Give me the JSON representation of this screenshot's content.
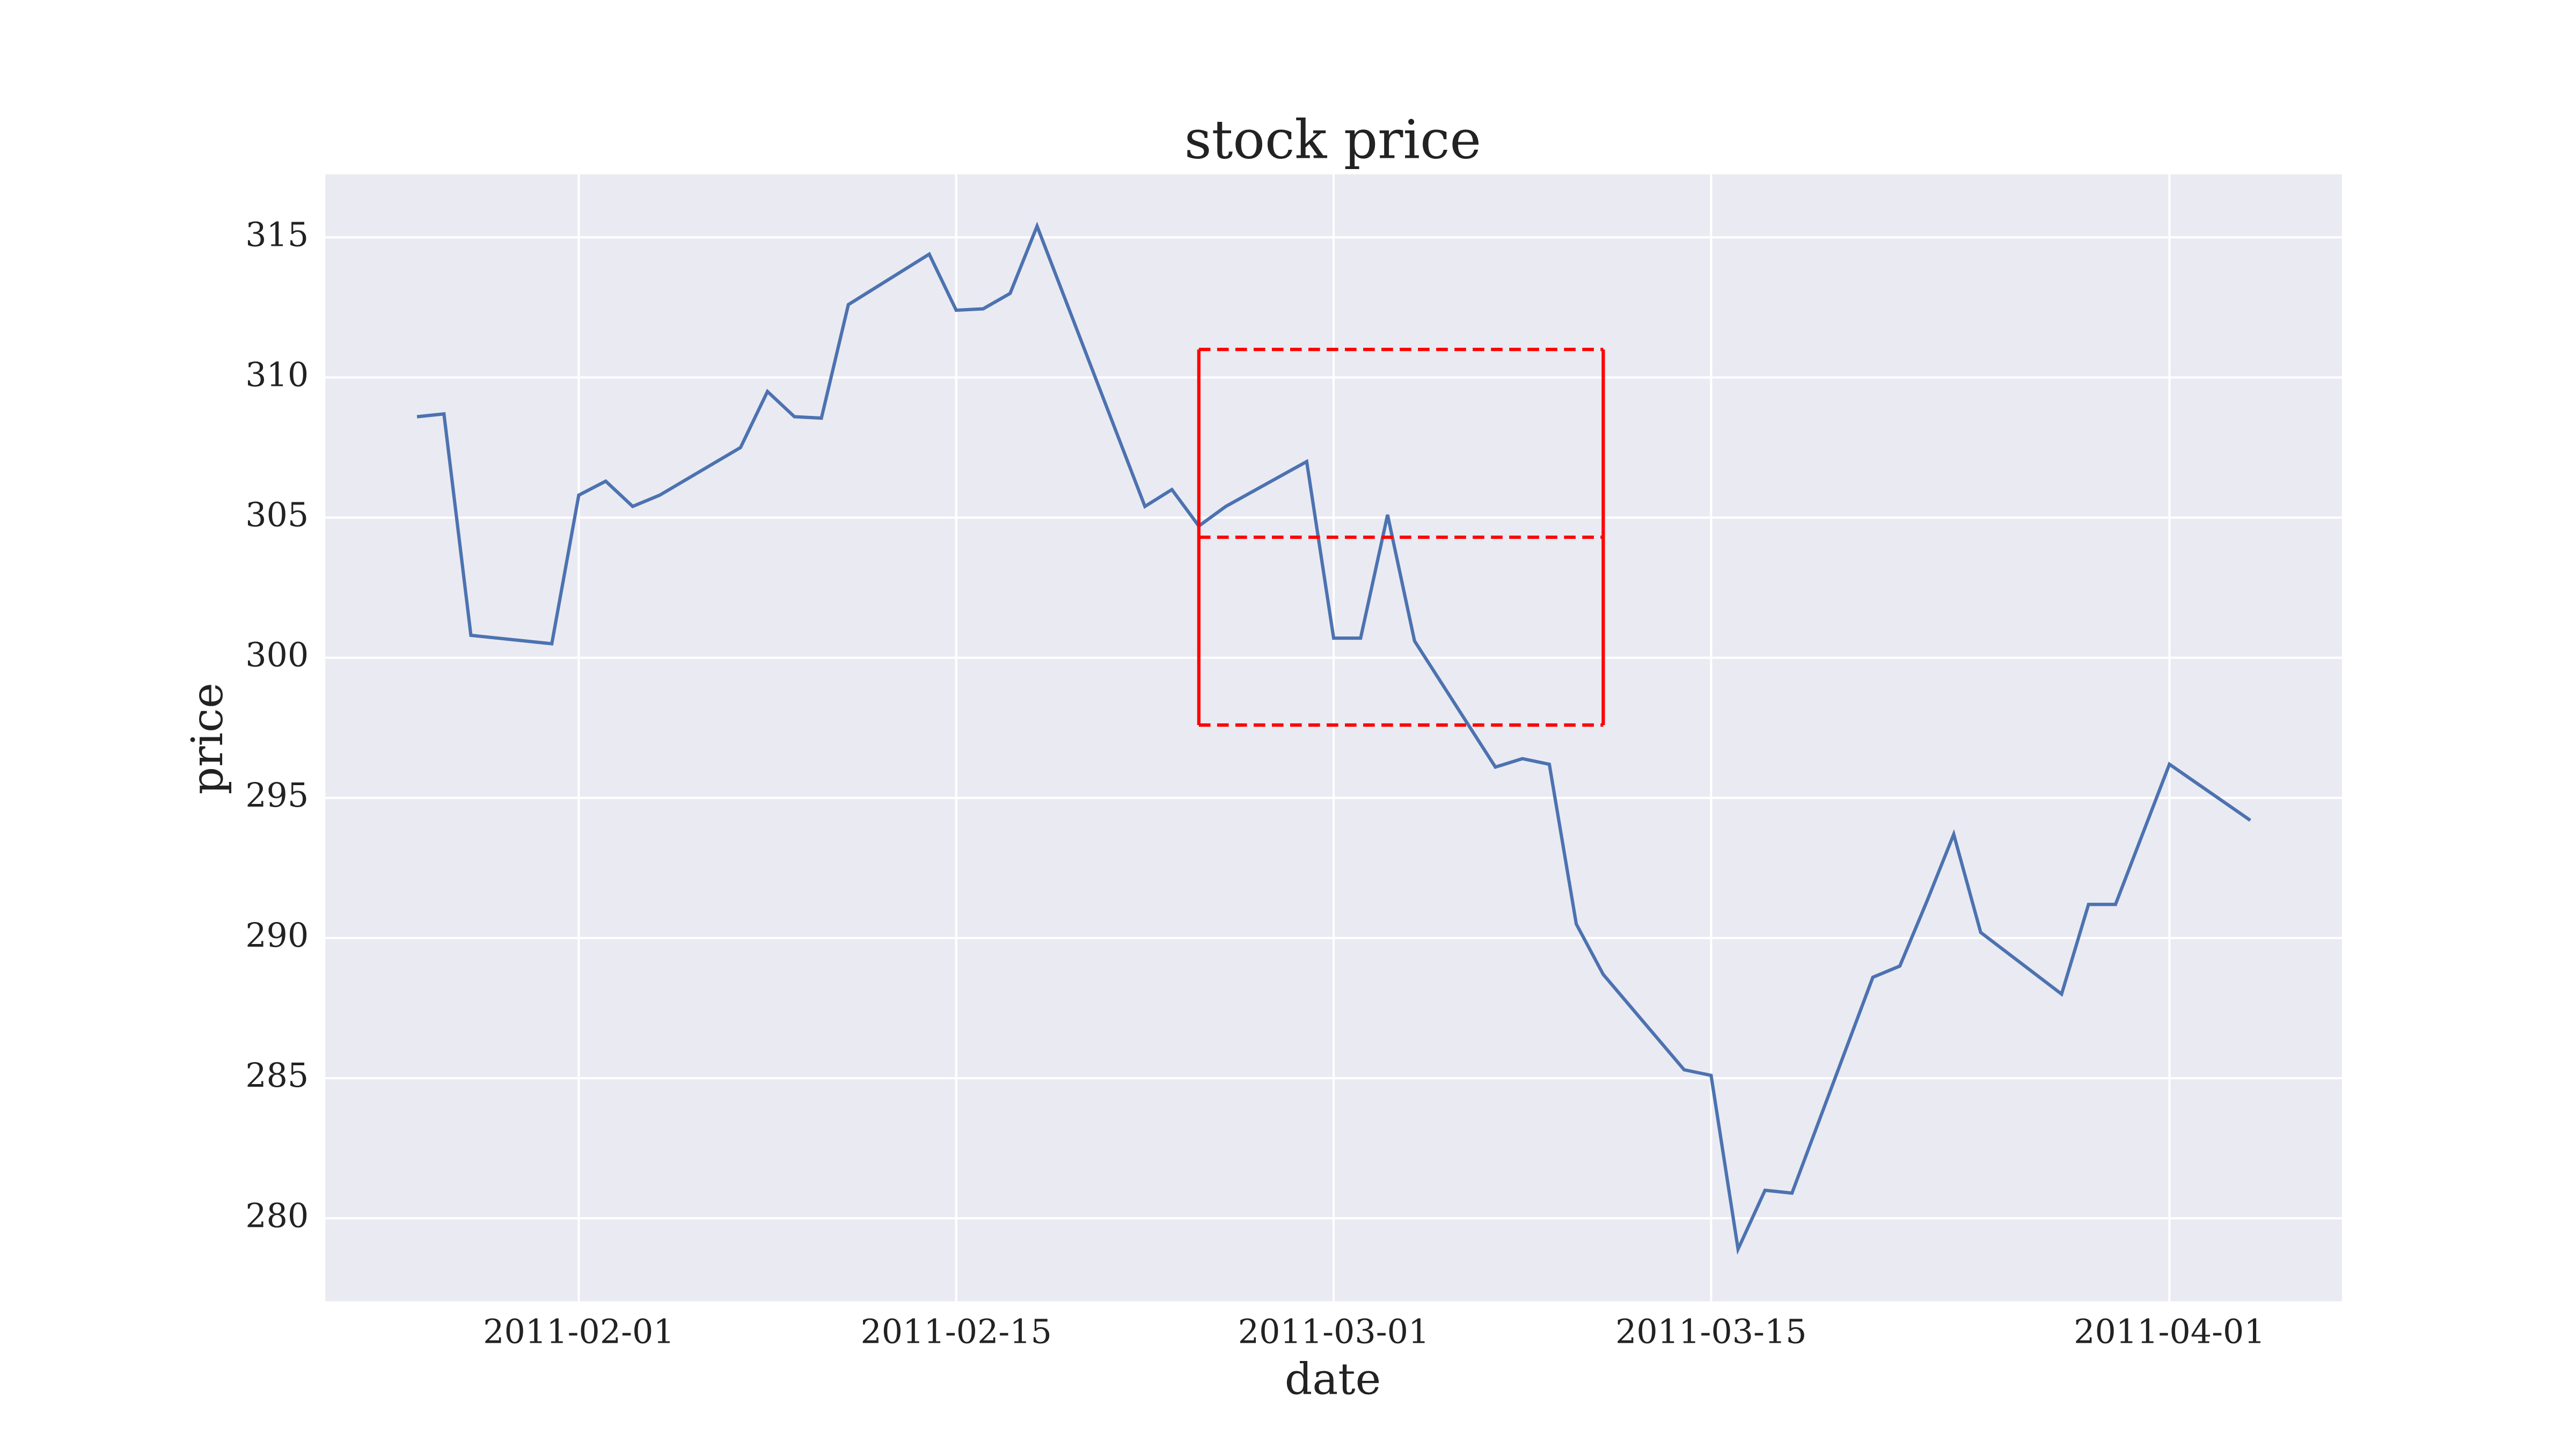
{
  "chart_data": {
    "type": "line",
    "title": "stock price",
    "x_label": "date",
    "y_label": "price",
    "x": [
      "2011-01-26",
      "2011-01-27",
      "2011-01-28",
      "2011-01-31",
      "2011-02-01",
      "2011-02-02",
      "2011-02-03",
      "2011-02-04",
      "2011-02-07",
      "2011-02-08",
      "2011-02-09",
      "2011-02-10",
      "2011-02-11",
      "2011-02-14",
      "2011-02-15",
      "2011-02-16",
      "2011-02-17",
      "2011-02-18",
      "2011-02-22",
      "2011-02-23",
      "2011-02-24",
      "2011-02-25",
      "2011-02-28",
      "2011-03-01",
      "2011-03-02",
      "2011-03-03",
      "2011-03-04",
      "2011-03-07",
      "2011-03-08",
      "2011-03-09",
      "2011-03-10",
      "2011-03-11",
      "2011-03-14",
      "2011-03-15",
      "2011-03-16",
      "2011-03-17",
      "2011-03-18",
      "2011-03-21",
      "2011-03-22",
      "2011-03-23",
      "2011-03-24",
      "2011-03-25",
      "2011-03-28",
      "2011-03-29",
      "2011-03-30",
      "2011-03-31",
      "2011-04-01",
      "2011-04-04"
    ],
    "series": [
      {
        "color": "#4c72b0",
        "values": [
          308.6,
          308.7,
          300.8,
          300.5,
          305.8,
          306.3,
          305.4,
          305.8,
          307.5,
          309.5,
          308.6,
          308.55,
          312.6,
          314.4,
          312.4,
          312.45,
          313.0,
          315.4,
          305.4,
          306.0,
          304.7,
          305.4,
          307.0,
          300.7,
          300.7,
          305.1,
          300.6,
          296.1,
          296.4,
          296.2,
          290.5,
          288.7,
          285.3,
          285.1,
          278.9,
          281.0,
          280.9,
          288.6,
          289.0,
          291.3,
          293.7,
          290.2,
          288.0,
          291.2,
          291.2,
          293.7,
          296.2,
          294.2
        ]
      }
    ],
    "annotation_box": {
      "x": [
        "2011-02-24",
        "2011-03-11"
      ],
      "upper": 311.0,
      "mean": 304.3,
      "lower": 297.6,
      "color": "#ff0000"
    },
    "xlim": [
      "2011-01-22T14:24",
      "2011-04-07T09:36"
    ],
    "xticks": [
      "2011-02-01",
      "2011-02-15",
      "2011-03-01",
      "2011-03-15",
      "2011-04-01"
    ],
    "ylim": [
      277.04,
      317.25
    ],
    "yticks": [
      280,
      285,
      290,
      295,
      300,
      305,
      310,
      315
    ],
    "grid": true
  }
}
